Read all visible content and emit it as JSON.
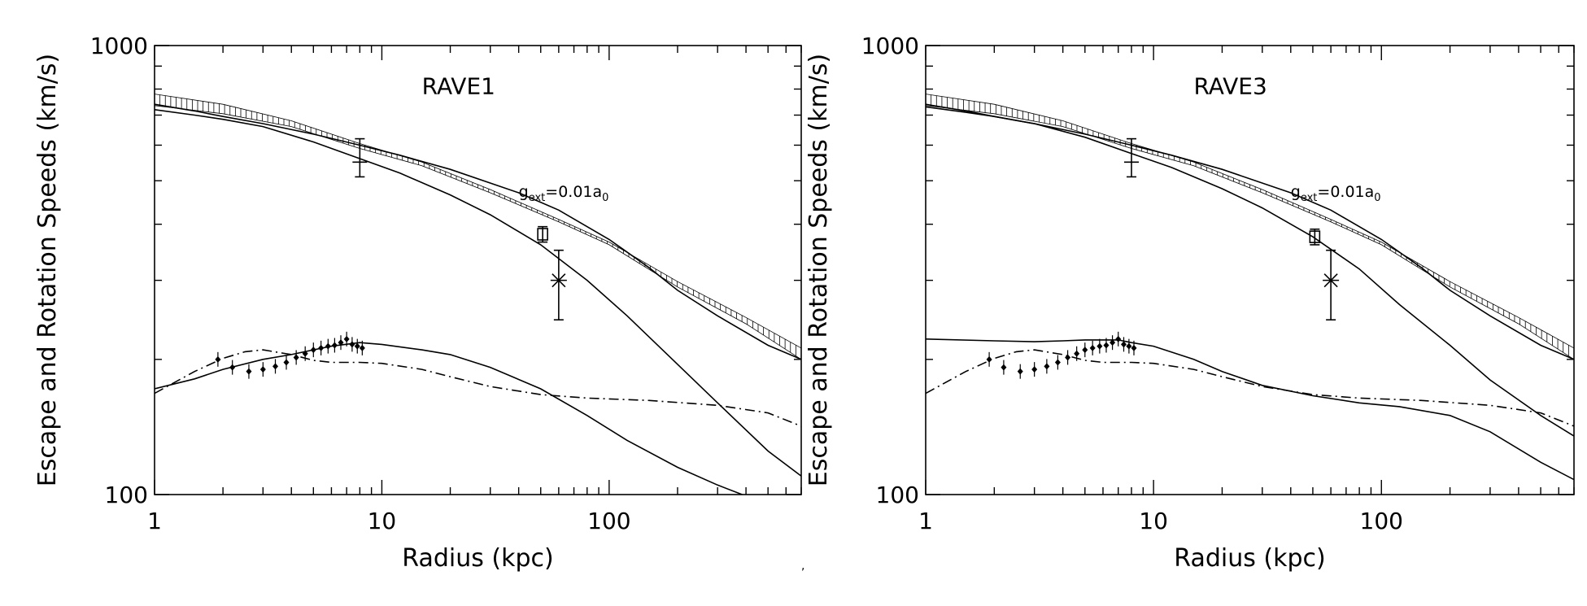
{
  "figure": {
    "stray_mark": ","
  },
  "chart_data": [
    {
      "type": "line",
      "panel_label": "RAVE1",
      "xlabel": "Radius (kpc)",
      "ylabel": "Escape and Rotation Speeds (km/s)",
      "xscale": "log",
      "yscale": "log",
      "xlim": [
        1,
        700
      ],
      "ylim": [
        100,
        1000
      ],
      "xticks": [
        1,
        10,
        100
      ],
      "yticks": [
        100,
        1000
      ],
      "annotation": {
        "base": "g",
        "sub": "ext",
        "mid": "=0.01a",
        "sub2": "0",
        "x": 40,
        "y": 460
      },
      "series": [
        {
          "style": "solid",
          "x": [
            1,
            1.5,
            2,
            3,
            5,
            8,
            12,
            20,
            30,
            50,
            80,
            120,
            200,
            300,
            500,
            700
          ],
          "y": [
            720,
            700,
            685,
            660,
            610,
            560,
            520,
            465,
            420,
            360,
            300,
            250,
            195,
            160,
            125,
            110
          ]
        },
        {
          "style": "solid",
          "x": [
            1,
            1.5,
            2,
            3,
            5,
            8,
            12,
            20,
            40,
            60,
            100,
            150,
            200,
            300,
            500,
            700
          ],
          "y": [
            740,
            715,
            695,
            670,
            635,
            600,
            570,
            530,
            470,
            430,
            370,
            320,
            285,
            250,
            215,
            200
          ]
        },
        {
          "style": "solid",
          "x": [
            1,
            1.5,
            2,
            3,
            4,
            5,
            6,
            8,
            10,
            15,
            20,
            30,
            50,
            80,
            120,
            200,
            300,
            500
          ],
          "y": [
            172,
            181,
            190,
            200,
            205,
            210,
            214,
            218,
            216,
            210,
            205,
            192,
            172,
            150,
            132,
            115,
            105,
            95
          ]
        },
        {
          "style": "dashdot",
          "x": [
            1,
            1.5,
            2,
            2.5,
            3,
            4,
            5,
            6,
            8,
            10,
            15,
            20,
            30,
            50,
            80,
            150,
            300,
            500,
            700
          ],
          "y": [
            168,
            188,
            201,
            208,
            210,
            205,
            199,
            197,
            197,
            196,
            190,
            183,
            174,
            167,
            164,
            162,
            158,
            152,
            142
          ]
        },
        {
          "style": "band",
          "x": [
            1,
            2,
            4,
            8,
            15,
            30,
            60,
            100,
            200,
            400,
            700
          ],
          "y_low": [
            735,
            705,
            660,
            590,
            540,
            470,
            405,
            360,
            290,
            240,
            200
          ],
          "y_high": [
            780,
            740,
            680,
            605,
            550,
            478,
            410,
            365,
            298,
            248,
            212
          ]
        }
      ],
      "points": [
        {
          "marker": "cross",
          "x": 8,
          "y": 550,
          "yerr_low": 510,
          "yerr_high": 620
        },
        {
          "marker": "square",
          "x": 51,
          "y": 380,
          "yerr_low": 365,
          "yerr_high": 395
        },
        {
          "marker": "asterisk",
          "x": 60,
          "y": 300,
          "yerr_low": 245,
          "yerr_high": 350
        }
      ],
      "rotation_curve": {
        "x": [
          1.9,
          2.2,
          2.6,
          3.0,
          3.4,
          3.8,
          4.2,
          4.6,
          5.0,
          5.4,
          5.8,
          6.2,
          6.6,
          7.0,
          7.4,
          7.8,
          8.2
        ],
        "y": [
          200,
          192,
          188,
          190,
          193,
          197,
          202,
          206,
          210,
          212,
          214,
          215,
          218,
          222,
          216,
          214,
          212
        ]
      }
    },
    {
      "type": "line",
      "panel_label": "RAVE3",
      "xlabel": "Radius (kpc)",
      "ylabel": "Escape and Rotation Speeds (km/s)",
      "xscale": "log",
      "yscale": "log",
      "xlim": [
        1,
        700
      ],
      "ylim": [
        100,
        1000
      ],
      "xticks": [
        1,
        10,
        100
      ],
      "yticks": [
        100,
        1000
      ],
      "annotation": {
        "base": "g",
        "sub": "ext",
        "mid": "=0.01a",
        "sub2": "0",
        "x": 40,
        "y": 460
      },
      "series": [
        {
          "style": "solid",
          "x": [
            1,
            1.5,
            2,
            3,
            5,
            8,
            12,
            20,
            30,
            50,
            80,
            120,
            200,
            300,
            500,
            700
          ],
          "y": [
            730,
            710,
            695,
            670,
            625,
            575,
            535,
            480,
            435,
            375,
            318,
            265,
            215,
            180,
            150,
            135
          ]
        },
        {
          "style": "solid",
          "x": [
            1,
            1.5,
            2,
            3,
            5,
            8,
            12,
            20,
            40,
            60,
            100,
            150,
            200,
            300,
            500,
            700
          ],
          "y": [
            740,
            715,
            695,
            670,
            635,
            600,
            570,
            530,
            470,
            430,
            370,
            320,
            285,
            250,
            215,
            200
          ]
        },
        {
          "style": "solid",
          "x": [
            1,
            2,
            3,
            4,
            5,
            6,
            7,
            8,
            10,
            15,
            20,
            30,
            50,
            80,
            120,
            200,
            300,
            500,
            700
          ],
          "y": [
            222,
            220,
            219,
            220,
            221,
            221,
            221,
            218,
            214,
            200,
            188,
            175,
            166,
            160,
            157,
            150,
            138,
            118,
            108
          ]
        },
        {
          "style": "dashdot",
          "x": [
            1,
            1.5,
            2,
            2.5,
            3,
            4,
            5,
            6,
            8,
            10,
            15,
            20,
            30,
            50,
            80,
            150,
            300,
            500,
            700
          ],
          "y": [
            168,
            188,
            201,
            208,
            210,
            205,
            199,
            197,
            197,
            196,
            190,
            183,
            174,
            167,
            164,
            162,
            158,
            152,
            142
          ]
        },
        {
          "style": "band",
          "x": [
            1,
            2,
            4,
            8,
            15,
            30,
            60,
            100,
            200,
            400,
            700
          ],
          "y_low": [
            735,
            705,
            660,
            590,
            540,
            470,
            405,
            360,
            290,
            240,
            200
          ],
          "y_high": [
            780,
            740,
            680,
            605,
            550,
            478,
            410,
            365,
            298,
            248,
            212
          ]
        }
      ],
      "points": [
        {
          "marker": "cross",
          "x": 8,
          "y": 550,
          "yerr_low": 510,
          "yerr_high": 620
        },
        {
          "marker": "square",
          "x": 51,
          "y": 375,
          "yerr_low": 360,
          "yerr_high": 390
        },
        {
          "marker": "asterisk",
          "x": 60,
          "y": 300,
          "yerr_low": 245,
          "yerr_high": 350
        }
      ],
      "rotation_curve": {
        "x": [
          1.9,
          2.2,
          2.6,
          3.0,
          3.4,
          3.8,
          4.2,
          4.6,
          5.0,
          5.4,
          5.8,
          6.2,
          6.6,
          7.0,
          7.4,
          7.8,
          8.2
        ],
        "y": [
          200,
          192,
          188,
          190,
          193,
          197,
          202,
          206,
          210,
          212,
          214,
          215,
          218,
          222,
          216,
          214,
          212
        ]
      }
    }
  ]
}
